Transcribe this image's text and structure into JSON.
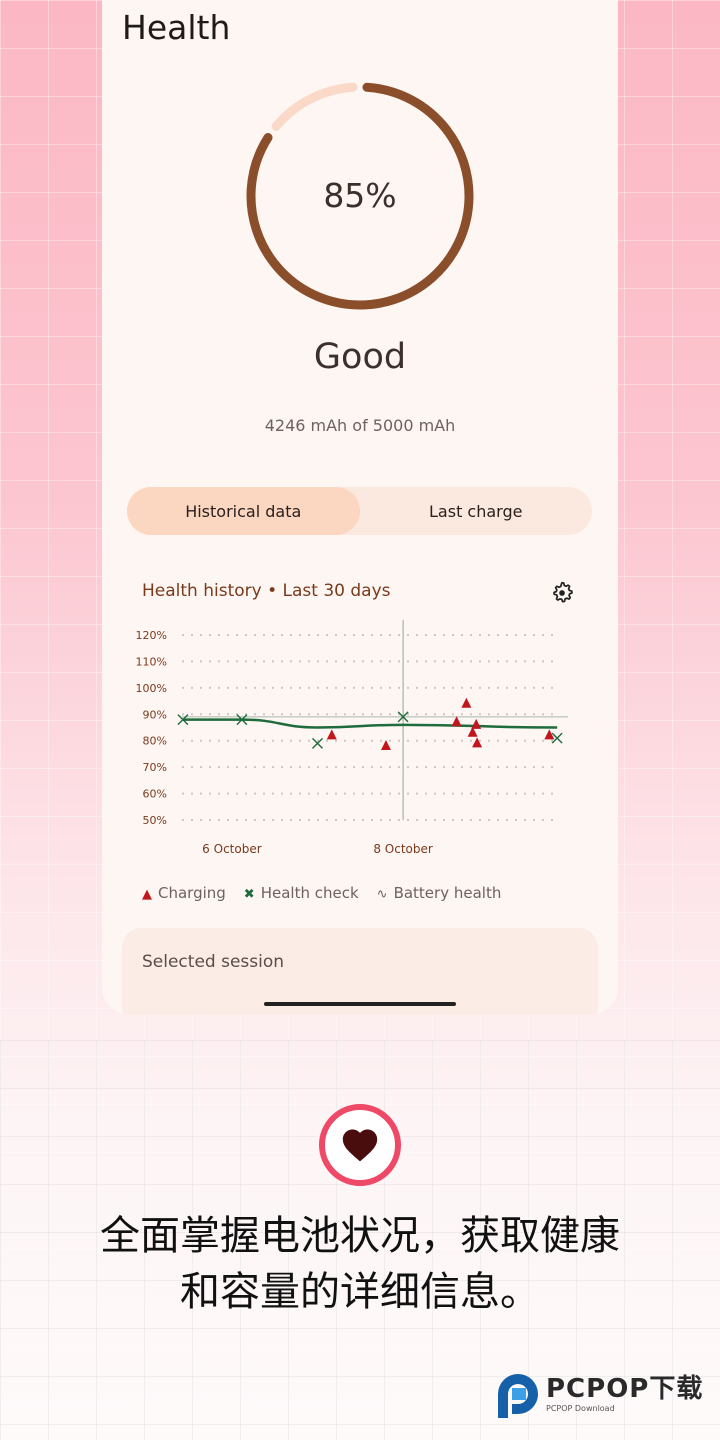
{
  "app": {
    "title": "Health"
  },
  "battery": {
    "health_percent": 85,
    "health_label": "85%",
    "status": "Good",
    "capacity_text": "4246 mAh of 5000 mAh",
    "ring_color": "#8b4e2b",
    "ring_bg_color": "#fbd9c8"
  },
  "tabs": [
    {
      "label": "Historical data",
      "selected": true
    },
    {
      "label": "Last charge",
      "selected": false
    }
  ],
  "chart_card": {
    "title": "Health history • Last 30 days",
    "settings_icon": "gear-icon"
  },
  "chart_data": {
    "type": "scatter",
    "title": "Health history • Last 30 days",
    "y_ticks": [
      "120%",
      "110%",
      "100%",
      "90%",
      "80%",
      "70%",
      "60%",
      "50%"
    ],
    "ylim": [
      50,
      120
    ],
    "x_ticks": [
      {
        "label": "6 October",
        "x": "2023-10-06T00:00"
      },
      {
        "label": "8 October",
        "x": "2023-10-08T00:00"
      }
    ],
    "xlim": [
      "2023-10-05T10:00",
      "2023-10-09T20:00"
    ],
    "grid": true,
    "crosshair": {
      "x": "2023-10-08T00:00",
      "y": 89
    },
    "legend_position": "bottom",
    "series": [
      {
        "name": "Charging",
        "marker": "triangle",
        "color": "#c0161c",
        "points": [
          {
            "x": "2023-10-07T04:00",
            "y": 82
          },
          {
            "x": "2023-10-07T19:12",
            "y": 78
          },
          {
            "x": "2023-10-08T15:00",
            "y": 87
          },
          {
            "x": "2023-10-08T17:45",
            "y": 94
          },
          {
            "x": "2023-10-08T19:30",
            "y": 83
          },
          {
            "x": "2023-10-08T20:30",
            "y": 86
          },
          {
            "x": "2023-10-08T20:45",
            "y": 79
          },
          {
            "x": "2023-10-09T17:00",
            "y": 82
          }
        ]
      },
      {
        "name": "Health check",
        "marker": "x",
        "color": "#1e6b3c",
        "points": [
          {
            "x": "2023-10-05T10:15",
            "y": 88
          },
          {
            "x": "2023-10-06T02:48",
            "y": 88
          },
          {
            "x": "2023-10-07T00:00",
            "y": 79
          },
          {
            "x": "2023-10-08T00:00",
            "y": 89
          },
          {
            "x": "2023-10-09T19:12",
            "y": 81
          }
        ]
      },
      {
        "name": "Battery health",
        "marker": "line",
        "color": "#1e6b3c",
        "points": [
          {
            "x": "2023-10-05T10:15",
            "y": 88
          },
          {
            "x": "2023-10-06T02:48",
            "y": 88
          },
          {
            "x": "2023-10-07T00:00",
            "y": 85
          },
          {
            "x": "2023-10-08T00:00",
            "y": 86
          },
          {
            "x": "2023-10-09T19:12",
            "y": 85
          }
        ]
      }
    ]
  },
  "legend": {
    "charging": "Charging",
    "health_check": "Health check",
    "battery_health": "Battery health"
  },
  "session": {
    "title": "Selected session"
  },
  "promo": {
    "line1": "全面掌握电池状况，获取健康",
    "line2": "和容量的详细信息。"
  },
  "watermark": {
    "name": "PCPOP下载",
    "sub": "PCPOP Download"
  }
}
